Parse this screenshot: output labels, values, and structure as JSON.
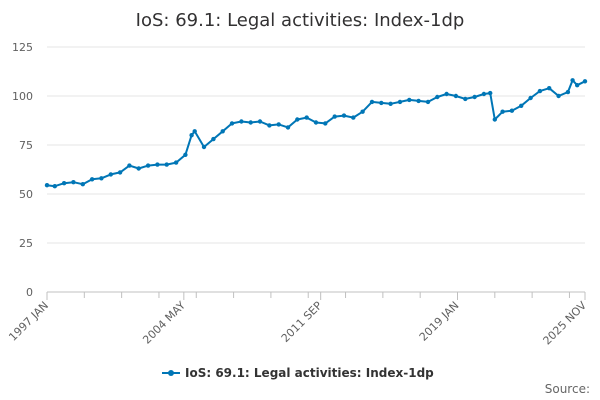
{
  "chart_data": {
    "type": "line",
    "title": "IoS: 69.1: Legal activities: Index-1dp",
    "xlabel": "",
    "ylabel": "",
    "ylim": [
      0,
      125
    ],
    "yticks": [
      "0",
      "25",
      "50",
      "75",
      "100",
      "125"
    ],
    "x_tick_labels": [
      "1997 JAN",
      "2004 MAY",
      "2011 SEP",
      "2019 JAN",
      "2025 NOV"
    ],
    "x_range": [
      "1997 JAN",
      "2025 NOV"
    ],
    "grid": true,
    "legend_position": "bottom-center",
    "line_color": "#0076B6",
    "series": [
      {
        "name": "IoS: 69.1: Legal activities: Index-1dp",
        "values": [
          [
            "1997-01",
            54.5
          ],
          [
            "1997-06",
            54.0
          ],
          [
            "1997-12",
            55.5
          ],
          [
            "1998-06",
            56.0
          ],
          [
            "1998-12",
            55.0
          ],
          [
            "1999-06",
            57.5
          ],
          [
            "1999-12",
            58.0
          ],
          [
            "2000-06",
            60.0
          ],
          [
            "2000-12",
            61.0
          ],
          [
            "2001-06",
            64.5
          ],
          [
            "2001-12",
            63.0
          ],
          [
            "2002-06",
            64.5
          ],
          [
            "2002-12",
            65.0
          ],
          [
            "2003-06",
            65.0
          ],
          [
            "2003-12",
            66.0
          ],
          [
            "2004-06",
            70.0
          ],
          [
            "2004-10",
            80.0
          ],
          [
            "2004-12",
            82.0
          ],
          [
            "2005-06",
            74.0
          ],
          [
            "2005-12",
            78.0
          ],
          [
            "2006-06",
            82.0
          ],
          [
            "2006-12",
            86.0
          ],
          [
            "2007-06",
            87.0
          ],
          [
            "2007-12",
            86.5
          ],
          [
            "2008-06",
            87.0
          ],
          [
            "2008-12",
            85.0
          ],
          [
            "2009-06",
            85.5
          ],
          [
            "2009-12",
            84.0
          ],
          [
            "2010-06",
            88.0
          ],
          [
            "2010-12",
            89.0
          ],
          [
            "2011-06",
            86.5
          ],
          [
            "2011-12",
            86.0
          ],
          [
            "2012-06",
            89.5
          ],
          [
            "2012-12",
            90.0
          ],
          [
            "2013-06",
            89.0
          ],
          [
            "2013-12",
            92.0
          ],
          [
            "2014-06",
            97.0
          ],
          [
            "2014-12",
            96.5
          ],
          [
            "2015-06",
            96.0
          ],
          [
            "2015-12",
            97.0
          ],
          [
            "2016-06",
            98.0
          ],
          [
            "2016-12",
            97.5
          ],
          [
            "2017-06",
            97.0
          ],
          [
            "2017-12",
            99.5
          ],
          [
            "2018-06",
            101.0
          ],
          [
            "2018-12",
            100.0
          ],
          [
            "2019-06",
            98.5
          ],
          [
            "2019-12",
            99.5
          ],
          [
            "2020-06",
            101.0
          ],
          [
            "2020-10",
            101.5
          ],
          [
            "2021-01",
            88.0
          ],
          [
            "2021-06",
            92.0
          ],
          [
            "2021-12",
            92.5
          ],
          [
            "2022-06",
            95.0
          ],
          [
            "2022-12",
            99.0
          ],
          [
            "2023-06",
            102.5
          ],
          [
            "2023-12",
            104.0
          ],
          [
            "2024-06",
            100.0
          ],
          [
            "2024-12",
            102.0
          ],
          [
            "2025-03",
            108.0
          ],
          [
            "2025-06",
            105.5
          ],
          [
            "2025-11",
            107.5
          ]
        ]
      }
    ]
  },
  "legend": {
    "label": "IoS: 69.1: Legal activities: Index-1dp"
  },
  "footer": {
    "source_label": "Source:"
  }
}
